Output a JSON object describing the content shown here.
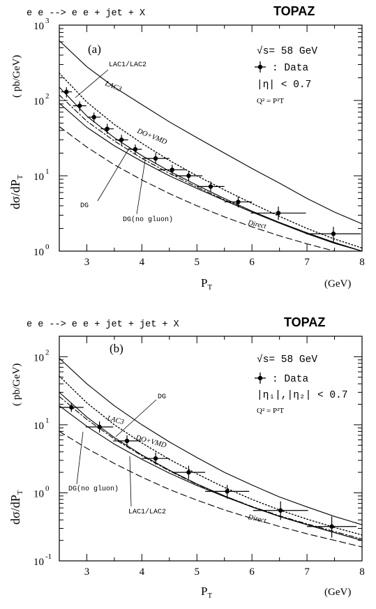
{
  "chart_data": [
    {
      "type": "line",
      "panel_label": "(a)",
      "process": "e e --> e e + jet + X",
      "experiment": "TOPAZ",
      "xlabel": "P",
      "xlabel_sub": "T",
      "xunit": "(GeV)",
      "ylabel": "dσ/dP",
      "ylabel_sub": "T",
      "yunit": "( pb/GeV)",
      "xlim": [
        2.5,
        8
      ],
      "ylim": [
        1,
        1000
      ],
      "yscale": "log",
      "x_ticks": [
        "3",
        "4",
        "5",
        "6",
        "7",
        "8"
      ],
      "y_ticks": [
        {
          "base": "10",
          "exp": "3",
          "value": 1000
        },
        {
          "base": "10",
          "exp": "2",
          "value": 100
        },
        {
          "base": "10",
          "exp": "1",
          "value": 10
        },
        {
          "base": "10",
          "exp": "0",
          "value": 1
        }
      ],
      "info": {
        "sqrt_s": "√s= 58 GeV",
        "data_legend": ": Data",
        "eta_cut": "|η| < 0.7",
        "q2": "Q² = P²T"
      },
      "series": [
        {
          "name": "LAC3",
          "style": "solid",
          "x": [
            2.5,
            3,
            3.5,
            4,
            4.5,
            5,
            5.5,
            6,
            6.5,
            7,
            7.5,
            8
          ],
          "y": [
            620,
            280,
            150,
            88,
            52,
            32,
            20,
            12.5,
            8,
            5,
            3.3,
            2.3
          ]
        },
        {
          "name": "DO+VMD",
          "style": "dotted",
          "x": [
            2.5,
            3,
            3.5,
            4,
            4.5,
            5,
            5.5,
            6,
            6.5,
            7,
            7.5,
            8
          ],
          "y": [
            230,
            95,
            48,
            27,
            16,
            10,
            6.5,
            4.3,
            2.9,
            2,
            1.45,
            1.1
          ]
        },
        {
          "name": "LAC1/LAC2",
          "style": "solid",
          "x": [
            2.5,
            3,
            3.5,
            4,
            4.5,
            5,
            5.5,
            6,
            6.5,
            7,
            7.5,
            8
          ],
          "y": [
            150,
            62,
            32,
            18.5,
            11.5,
            7.5,
            5,
            3.4,
            2.4,
            1.75,
            1.3,
            1
          ]
        },
        {
          "name": "DG",
          "style": "dashdot",
          "x": [
            2.5,
            3,
            3.5,
            4,
            4.5,
            5,
            5.5,
            6,
            6.5,
            7,
            7.5,
            8
          ],
          "y": [
            118,
            53,
            29,
            17,
            10.8,
            7.1,
            4.8,
            3.3,
            2.4,
            1.75,
            1.3,
            1
          ]
        },
        {
          "name": "DG(no gluon)",
          "style": "solid",
          "x": [
            2.5,
            3,
            3.5,
            4,
            4.5,
            5,
            5.5,
            6,
            6.5,
            7,
            7.5,
            8
          ],
          "y": [
            92,
            44,
            25,
            15.5,
            10,
            6.8,
            4.7,
            3.3,
            2.35,
            1.7,
            1.27,
            0.97
          ]
        },
        {
          "name": "Direct",
          "style": "dashed",
          "x": [
            2.5,
            3,
            3.5,
            4,
            4.5,
            5,
            5.5,
            6,
            6.5,
            7,
            7.5,
            8
          ],
          "y": [
            45,
            24,
            14,
            8.8,
            5.8,
            4,
            2.85,
            2.1,
            1.6,
            1.25,
            1,
            0.82
          ]
        }
      ],
      "data_points": [
        {
          "x": 2.63,
          "y": 130,
          "xerr": 0.1,
          "ylo": 110,
          "yhi": 150
        },
        {
          "x": 2.87,
          "y": 85,
          "xerr": 0.12,
          "ylo": 72,
          "yhi": 97
        },
        {
          "x": 3.13,
          "y": 60,
          "xerr": 0.12,
          "ylo": 51,
          "yhi": 69
        },
        {
          "x": 3.37,
          "y": 42,
          "xerr": 0.12,
          "ylo": 36,
          "yhi": 49
        },
        {
          "x": 3.63,
          "y": 30,
          "xerr": 0.12,
          "ylo": 25,
          "yhi": 35
        },
        {
          "x": 3.88,
          "y": 22.5,
          "xerr": 0.12,
          "ylo": 19,
          "yhi": 26
        },
        {
          "x": 4.25,
          "y": 17,
          "xerr": 0.25,
          "ylo": 14.5,
          "yhi": 20
        },
        {
          "x": 4.55,
          "y": 12,
          "xerr": 0.25,
          "ylo": 10.2,
          "yhi": 14
        },
        {
          "x": 4.85,
          "y": 10,
          "xerr": 0.25,
          "ylo": 8.6,
          "yhi": 11.5
        },
        {
          "x": 5.25,
          "y": 7.2,
          "xerr": 0.25,
          "ylo": 6.1,
          "yhi": 8.4
        },
        {
          "x": 5.75,
          "y": 4.5,
          "xerr": 0.25,
          "ylo": 3.8,
          "yhi": 5.3
        },
        {
          "x": 6.48,
          "y": 3.2,
          "xerr": 0.5,
          "ylo": 2.6,
          "yhi": 3.9
        },
        {
          "x": 7.48,
          "y": 1.7,
          "xerr": 0.5,
          "ylo": 1.3,
          "yhi": 2.1
        }
      ],
      "curve_labels": [
        {
          "text": "LAC1/LAC2",
          "series": "LAC1/LAC2"
        },
        {
          "text": "LAC3",
          "series": "LAC3"
        },
        {
          "text": "DO+VMD",
          "series": "DO+VMD"
        },
        {
          "text": "DG",
          "series": "DG"
        },
        {
          "text": "DG(no gluon)",
          "series": "DG(no gluon)"
        },
        {
          "text": "Direct",
          "series": "Direct"
        }
      ]
    },
    {
      "type": "line",
      "panel_label": "(b)",
      "process": "e e --> e e + jet + jet + X",
      "experiment": "TOPAZ",
      "xlabel": "P",
      "xlabel_sub": "T",
      "xunit": "(GeV)",
      "ylabel": "dσ/dP",
      "ylabel_sub": "T",
      "yunit": "( pb/GeV)",
      "xlim": [
        2.5,
        8
      ],
      "ylim": [
        0.1,
        200
      ],
      "yscale": "log",
      "x_ticks": [
        "3",
        "4",
        "5",
        "6",
        "7",
        "8"
      ],
      "y_ticks": [
        {
          "base": "10",
          "exp": "2",
          "value": 100
        },
        {
          "base": "10",
          "exp": "1",
          "value": 10
        },
        {
          "base": "10",
          "exp": "0",
          "value": 1
        },
        {
          "base": "10",
          "exp": "-1",
          "value": 0.1
        }
      ],
      "info": {
        "sqrt_s": "√s= 58 GeV",
        "data_legend": ": Data",
        "eta_cut": "|η₁|,|η₂| < 0.7",
        "q2": "Q² = P²T"
      },
      "series": [
        {
          "name": "LAC3",
          "style": "solid",
          "x": [
            2.5,
            3,
            3.5,
            4,
            4.5,
            5,
            5.5,
            6,
            6.5,
            7,
            7.5,
            8
          ],
          "y": [
            95,
            40,
            19,
            10,
            5.6,
            3.3,
            2,
            1.3,
            0.87,
            0.62,
            0.45,
            0.34
          ]
        },
        {
          "name": "DO+VMD",
          "style": "dotted",
          "x": [
            2.5,
            3,
            3.5,
            4,
            4.5,
            5,
            5.5,
            6,
            6.5,
            7,
            7.5,
            8
          ],
          "y": [
            52,
            21,
            10,
            5.4,
            3.1,
            1.9,
            1.2,
            0.8,
            0.56,
            0.41,
            0.31,
            0.24
          ]
        },
        {
          "name": "LAC1/LAC2",
          "style": "solid",
          "x": [
            2.5,
            3,
            3.5,
            4,
            4.5,
            5,
            5.5,
            6,
            6.5,
            7,
            7.5,
            8
          ],
          "y": [
            30,
            13,
            6.5,
            3.6,
            2.15,
            1.35,
            0.9,
            0.62,
            0.45,
            0.34,
            0.26,
            0.2
          ]
        },
        {
          "name": "DG",
          "style": "dashdot",
          "x": [
            2.5,
            3,
            3.5,
            4,
            4.5,
            5,
            5.5,
            6,
            6.5,
            7,
            7.5,
            8
          ],
          "y": [
            26,
            12,
            6.2,
            3.5,
            2.1,
            1.33,
            0.9,
            0.63,
            0.46,
            0.35,
            0.27,
            0.21
          ]
        },
        {
          "name": "DG(no gluon)",
          "style": "solid",
          "x": [
            2.5,
            3,
            3.5,
            4,
            4.5,
            5,
            5.5,
            6,
            6.5,
            7,
            7.5,
            8
          ],
          "y": [
            19,
            9.5,
            5.2,
            3.1,
            1.95,
            1.28,
            0.88,
            0.62,
            0.45,
            0.34,
            0.26,
            0.2
          ]
        },
        {
          "name": "Direct",
          "style": "dashed",
          "x": [
            2.5,
            3,
            3.5,
            4,
            4.5,
            5,
            5.5,
            6,
            6.5,
            7,
            7.5,
            8
          ],
          "y": [
            8,
            4.5,
            2.7,
            1.7,
            1.12,
            0.78,
            0.56,
            0.42,
            0.32,
            0.25,
            0.2,
            0.16
          ]
        }
      ],
      "data_points": [
        {
          "x": 2.72,
          "y": 18,
          "xerr": 0.22,
          "ylo": 15.5,
          "yhi": 21
        },
        {
          "x": 3.23,
          "y": 9.3,
          "xerr": 0.25,
          "ylo": 7.7,
          "yhi": 11.2
        },
        {
          "x": 3.73,
          "y": 5.8,
          "xerr": 0.25,
          "ylo": 4.8,
          "yhi": 7
        },
        {
          "x": 4.25,
          "y": 3.2,
          "xerr": 0.25,
          "ylo": 2.6,
          "yhi": 3.9
        },
        {
          "x": 4.85,
          "y": 2.0,
          "xerr": 0.3,
          "ylo": 1.6,
          "yhi": 2.5
        },
        {
          "x": 5.55,
          "y": 1.05,
          "xerr": 0.4,
          "ylo": 0.82,
          "yhi": 1.3
        },
        {
          "x": 6.52,
          "y": 0.55,
          "xerr": 0.5,
          "ylo": 0.4,
          "yhi": 0.75
        },
        {
          "x": 7.45,
          "y": 0.32,
          "xerr": 0.45,
          "ylo": 0.22,
          "yhi": 0.45
        }
      ],
      "curve_labels": [
        {
          "text": "LAC3",
          "series": "LAC3"
        },
        {
          "text": "DG",
          "series": "DG"
        },
        {
          "text": "DO+VMD",
          "series": "DO+VMD"
        },
        {
          "text": "DG(no gluon)",
          "series": "DG(no gluon)"
        },
        {
          "text": "LAC1/LAC2",
          "series": "LAC1/LAC2"
        },
        {
          "text": "Direct",
          "series": "Direct"
        }
      ]
    }
  ]
}
